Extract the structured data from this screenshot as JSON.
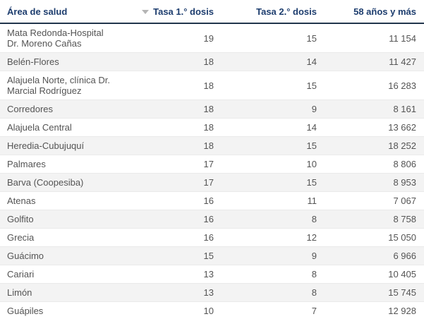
{
  "colors": {
    "header_text": "#1d3d6e",
    "header_border": "#22364c",
    "body_text": "#545454",
    "banded_row": "#f3f3f3",
    "gridline": "#eaeaea",
    "sort_icon": "#b5b5b5",
    "background": "#ffffff"
  },
  "header": {
    "area": "Área de salud",
    "tasa1": "Tasa 1.° dosis",
    "tasa2": "Tasa 2.° dosis",
    "age58": "58 años y más",
    "sorted_column": "Tasa 1.° dosis",
    "sort_direction": "descending"
  },
  "rows": [
    {
      "area": "Mata Redonda-Hospital\nDr. Moreno Cañas",
      "tasa1": "19",
      "tasa2": "15",
      "age58": "11 154"
    },
    {
      "area": "Belén-Flores",
      "tasa1": "18",
      "tasa2": "14",
      "age58": "11 427"
    },
    {
      "area": "Alajuela Norte, clínica Dr.\nMarcial Rodríguez",
      "tasa1": "18",
      "tasa2": "15",
      "age58": "16 283"
    },
    {
      "area": "Corredores",
      "tasa1": "18",
      "tasa2": "9",
      "age58": "8 161"
    },
    {
      "area": "Alajuela Central",
      "tasa1": "18",
      "tasa2": "14",
      "age58": "13 662"
    },
    {
      "area": "Heredia-Cubujuquí",
      "tasa1": "18",
      "tasa2": "15",
      "age58": "18 252"
    },
    {
      "area": "Palmares",
      "tasa1": "17",
      "tasa2": "10",
      "age58": "8 806"
    },
    {
      "area": "Barva (Coopesiba)",
      "tasa1": "17",
      "tasa2": "15",
      "age58": "8 953"
    },
    {
      "area": "Atenas",
      "tasa1": "16",
      "tasa2": "11",
      "age58": "7 067"
    },
    {
      "area": "Golfito",
      "tasa1": "16",
      "tasa2": "8",
      "age58": "8 758"
    },
    {
      "area": "Grecia",
      "tasa1": "16",
      "tasa2": "12",
      "age58": "15 050"
    },
    {
      "area": "Guácimo",
      "tasa1": "15",
      "tasa2": "9",
      "age58": "6 966"
    },
    {
      "area": "Cariari",
      "tasa1": "13",
      "tasa2": "8",
      "age58": "10 405"
    },
    {
      "area": "Limón",
      "tasa1": "13",
      "tasa2": "8",
      "age58": "15 745"
    },
    {
      "area": "Guápiles",
      "tasa1": "10",
      "tasa2": "7",
      "age58": "12 928"
    }
  ]
}
